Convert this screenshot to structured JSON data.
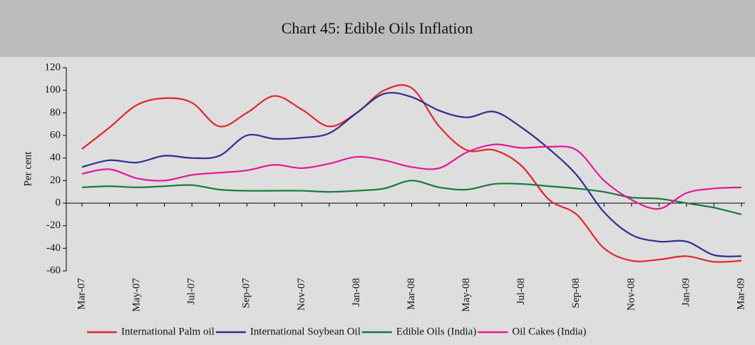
{
  "chart_data": {
    "type": "line",
    "title": "Chart 45: Edible Oils Inflation",
    "ylabel": "Per cent",
    "categories": [
      "Mar-07",
      null,
      "May-07",
      null,
      "Jul-07",
      null,
      "Sep-07",
      null,
      "Nov-07",
      null,
      "Jan-08",
      null,
      "Mar-08",
      null,
      "May-08",
      null,
      "Jul-08",
      null,
      "Sep-08",
      null,
      "Nov-08",
      null,
      "Jan-09",
      null,
      "Mar-09"
    ],
    "series": [
      {
        "name": "International Palm oil",
        "color": "#e3262b",
        "values": [
          48,
          67,
          87,
          93,
          89,
          68,
          80,
          95,
          83,
          68,
          80,
          100,
          102,
          68,
          47,
          47,
          33,
          3,
          -10,
          -40,
          -51,
          -50,
          -47,
          -52,
          -51
        ]
      },
      {
        "name": "International Soybean Oil",
        "color": "#2e2e8f",
        "values": [
          32,
          38,
          36,
          42,
          40,
          42,
          60,
          57,
          58,
          62,
          80,
          97,
          94,
          82,
          76,
          81,
          67,
          48,
          25,
          -8,
          -28,
          -34,
          -34,
          -46,
          -47
        ]
      },
      {
        "name": "Edible Oils (India)",
        "color": "#17793b",
        "values": [
          14,
          15,
          14,
          15,
          16,
          12,
          11,
          11,
          11,
          10,
          11,
          13,
          20,
          14,
          12,
          17,
          17,
          15,
          13,
          10,
          5,
          4,
          0,
          -4,
          -10
        ]
      },
      {
        "name": "Oil Cakes (India)",
        "color": "#e4179a",
        "values": [
          26,
          30,
          22,
          20,
          25,
          27,
          29,
          34,
          31,
          35,
          41,
          38,
          32,
          31,
          45,
          52,
          49,
          50,
          47,
          20,
          3,
          -5,
          9,
          13,
          14
        ]
      }
    ],
    "ylim": [
      -60,
      120
    ],
    "yticks": [
      -60,
      -40,
      -20,
      0,
      20,
      40,
      60,
      80,
      100,
      120
    ]
  }
}
